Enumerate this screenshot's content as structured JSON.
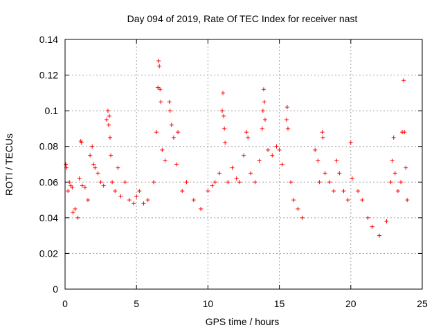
{
  "chart_data": {
    "type": "scatter",
    "title": "Day 094 of 2019, Rate Of TEC Index for receiver nast",
    "xlabel": "GPS time / hours",
    "ylabel": "ROTI / TECUs",
    "xlim": [
      0,
      25
    ],
    "ylim": [
      0,
      0.14
    ],
    "xticks": [
      0,
      5,
      10,
      15,
      20,
      25
    ],
    "yticks": [
      0,
      0.02,
      0.04,
      0.06,
      0.08,
      0.1,
      0.12,
      0.14
    ],
    "xtick_labels": [
      "0",
      "5",
      "10",
      "15",
      "20",
      "25"
    ],
    "ytick_labels": [
      "0",
      "0.02",
      "0.04",
      "0.06",
      "0.08",
      "0.1",
      "0.12",
      "0.14"
    ],
    "grid": true,
    "marker": "+",
    "series": [
      {
        "color": "#ff0000",
        "points": [
          [
            0.05,
            0.07
          ],
          [
            0.1,
            0.068
          ],
          [
            0.2,
            0.055
          ],
          [
            0.3,
            0.06
          ],
          [
            0.4,
            0.058
          ],
          [
            0.5,
            0.057
          ],
          [
            0.55,
            0.043
          ],
          [
            0.7,
            0.045
          ],
          [
            0.9,
            0.04
          ],
          [
            1.0,
            0.062
          ],
          [
            1.1,
            0.083
          ],
          [
            1.15,
            0.082
          ],
          [
            1.2,
            0.058
          ],
          [
            1.4,
            0.057
          ],
          [
            1.6,
            0.05
          ],
          [
            1.75,
            0.075
          ],
          [
            1.9,
            0.08
          ],
          [
            2.0,
            0.07
          ],
          [
            2.1,
            0.068
          ],
          [
            2.3,
            0.065
          ],
          [
            2.5,
            0.06
          ],
          [
            2.7,
            0.058
          ],
          [
            2.9,
            0.095
          ],
          [
            3.0,
            0.1
          ],
          [
            3.05,
            0.092
          ],
          [
            3.1,
            0.097
          ],
          [
            3.15,
            0.085
          ],
          [
            3.2,
            0.075
          ],
          [
            3.3,
            0.06
          ],
          [
            3.5,
            0.055
          ],
          [
            3.7,
            0.068
          ],
          [
            3.9,
            0.052
          ],
          [
            4.2,
            0.06
          ],
          [
            4.5,
            0.05
          ],
          [
            4.8,
            0.048
          ],
          [
            5.0,
            0.052
          ],
          [
            5.2,
            0.055
          ],
          [
            5.5,
            0.048
          ],
          [
            5.8,
            0.05
          ],
          [
            6.2,
            0.06
          ],
          [
            6.4,
            0.088
          ],
          [
            6.5,
            0.113
          ],
          [
            6.55,
            0.128
          ],
          [
            6.6,
            0.125
          ],
          [
            6.65,
            0.112
          ],
          [
            6.7,
            0.105
          ],
          [
            6.8,
            0.078
          ],
          [
            7.0,
            0.072
          ],
          [
            7.3,
            0.105
          ],
          [
            7.35,
            0.1
          ],
          [
            7.45,
            0.092
          ],
          [
            7.6,
            0.085
          ],
          [
            7.8,
            0.07
          ],
          [
            7.9,
            0.088
          ],
          [
            8.2,
            0.055
          ],
          [
            8.5,
            0.06
          ],
          [
            9.0,
            0.05
          ],
          [
            9.5,
            0.045
          ],
          [
            10.0,
            0.055
          ],
          [
            10.3,
            0.058
          ],
          [
            10.5,
            0.06
          ],
          [
            10.8,
            0.065
          ],
          [
            11.0,
            0.1
          ],
          [
            11.05,
            0.11
          ],
          [
            11.1,
            0.097
          ],
          [
            11.15,
            0.09
          ],
          [
            11.2,
            0.082
          ],
          [
            11.4,
            0.06
          ],
          [
            11.7,
            0.068
          ],
          [
            12.0,
            0.062
          ],
          [
            12.2,
            0.06
          ],
          [
            12.5,
            0.075
          ],
          [
            12.7,
            0.088
          ],
          [
            12.8,
            0.085
          ],
          [
            13.0,
            0.065
          ],
          [
            13.3,
            0.06
          ],
          [
            13.6,
            0.072
          ],
          [
            13.8,
            0.09
          ],
          [
            13.85,
            0.1
          ],
          [
            13.9,
            0.112
          ],
          [
            13.95,
            0.105
          ],
          [
            14.0,
            0.095
          ],
          [
            14.2,
            0.078
          ],
          [
            14.5,
            0.075
          ],
          [
            14.8,
            0.08
          ],
          [
            15.0,
            0.078
          ],
          [
            15.2,
            0.07
          ],
          [
            15.5,
            0.095
          ],
          [
            15.55,
            0.102
          ],
          [
            15.6,
            0.09
          ],
          [
            15.8,
            0.06
          ],
          [
            16.0,
            0.05
          ],
          [
            16.3,
            0.045
          ],
          [
            16.6,
            0.04
          ],
          [
            17.5,
            0.078
          ],
          [
            17.7,
            0.072
          ],
          [
            17.8,
            0.06
          ],
          [
            18.0,
            0.088
          ],
          [
            18.05,
            0.085
          ],
          [
            18.2,
            0.065
          ],
          [
            18.5,
            0.06
          ],
          [
            18.8,
            0.055
          ],
          [
            19.0,
            0.072
          ],
          [
            19.2,
            0.065
          ],
          [
            19.5,
            0.055
          ],
          [
            19.8,
            0.05
          ],
          [
            20.0,
            0.082
          ],
          [
            20.1,
            0.062
          ],
          [
            20.5,
            0.055
          ],
          [
            20.8,
            0.05
          ],
          [
            21.2,
            0.04
          ],
          [
            21.5,
            0.035
          ],
          [
            22.0,
            0.03
          ],
          [
            22.5,
            0.038
          ],
          [
            22.8,
            0.06
          ],
          [
            22.9,
            0.072
          ],
          [
            23.0,
            0.085
          ],
          [
            23.1,
            0.065
          ],
          [
            23.3,
            0.055
          ],
          [
            23.5,
            0.06
          ],
          [
            23.6,
            0.088
          ],
          [
            23.7,
            0.117
          ],
          [
            23.75,
            0.088
          ],
          [
            23.85,
            0.068
          ],
          [
            23.95,
            0.05
          ]
        ]
      }
    ]
  }
}
